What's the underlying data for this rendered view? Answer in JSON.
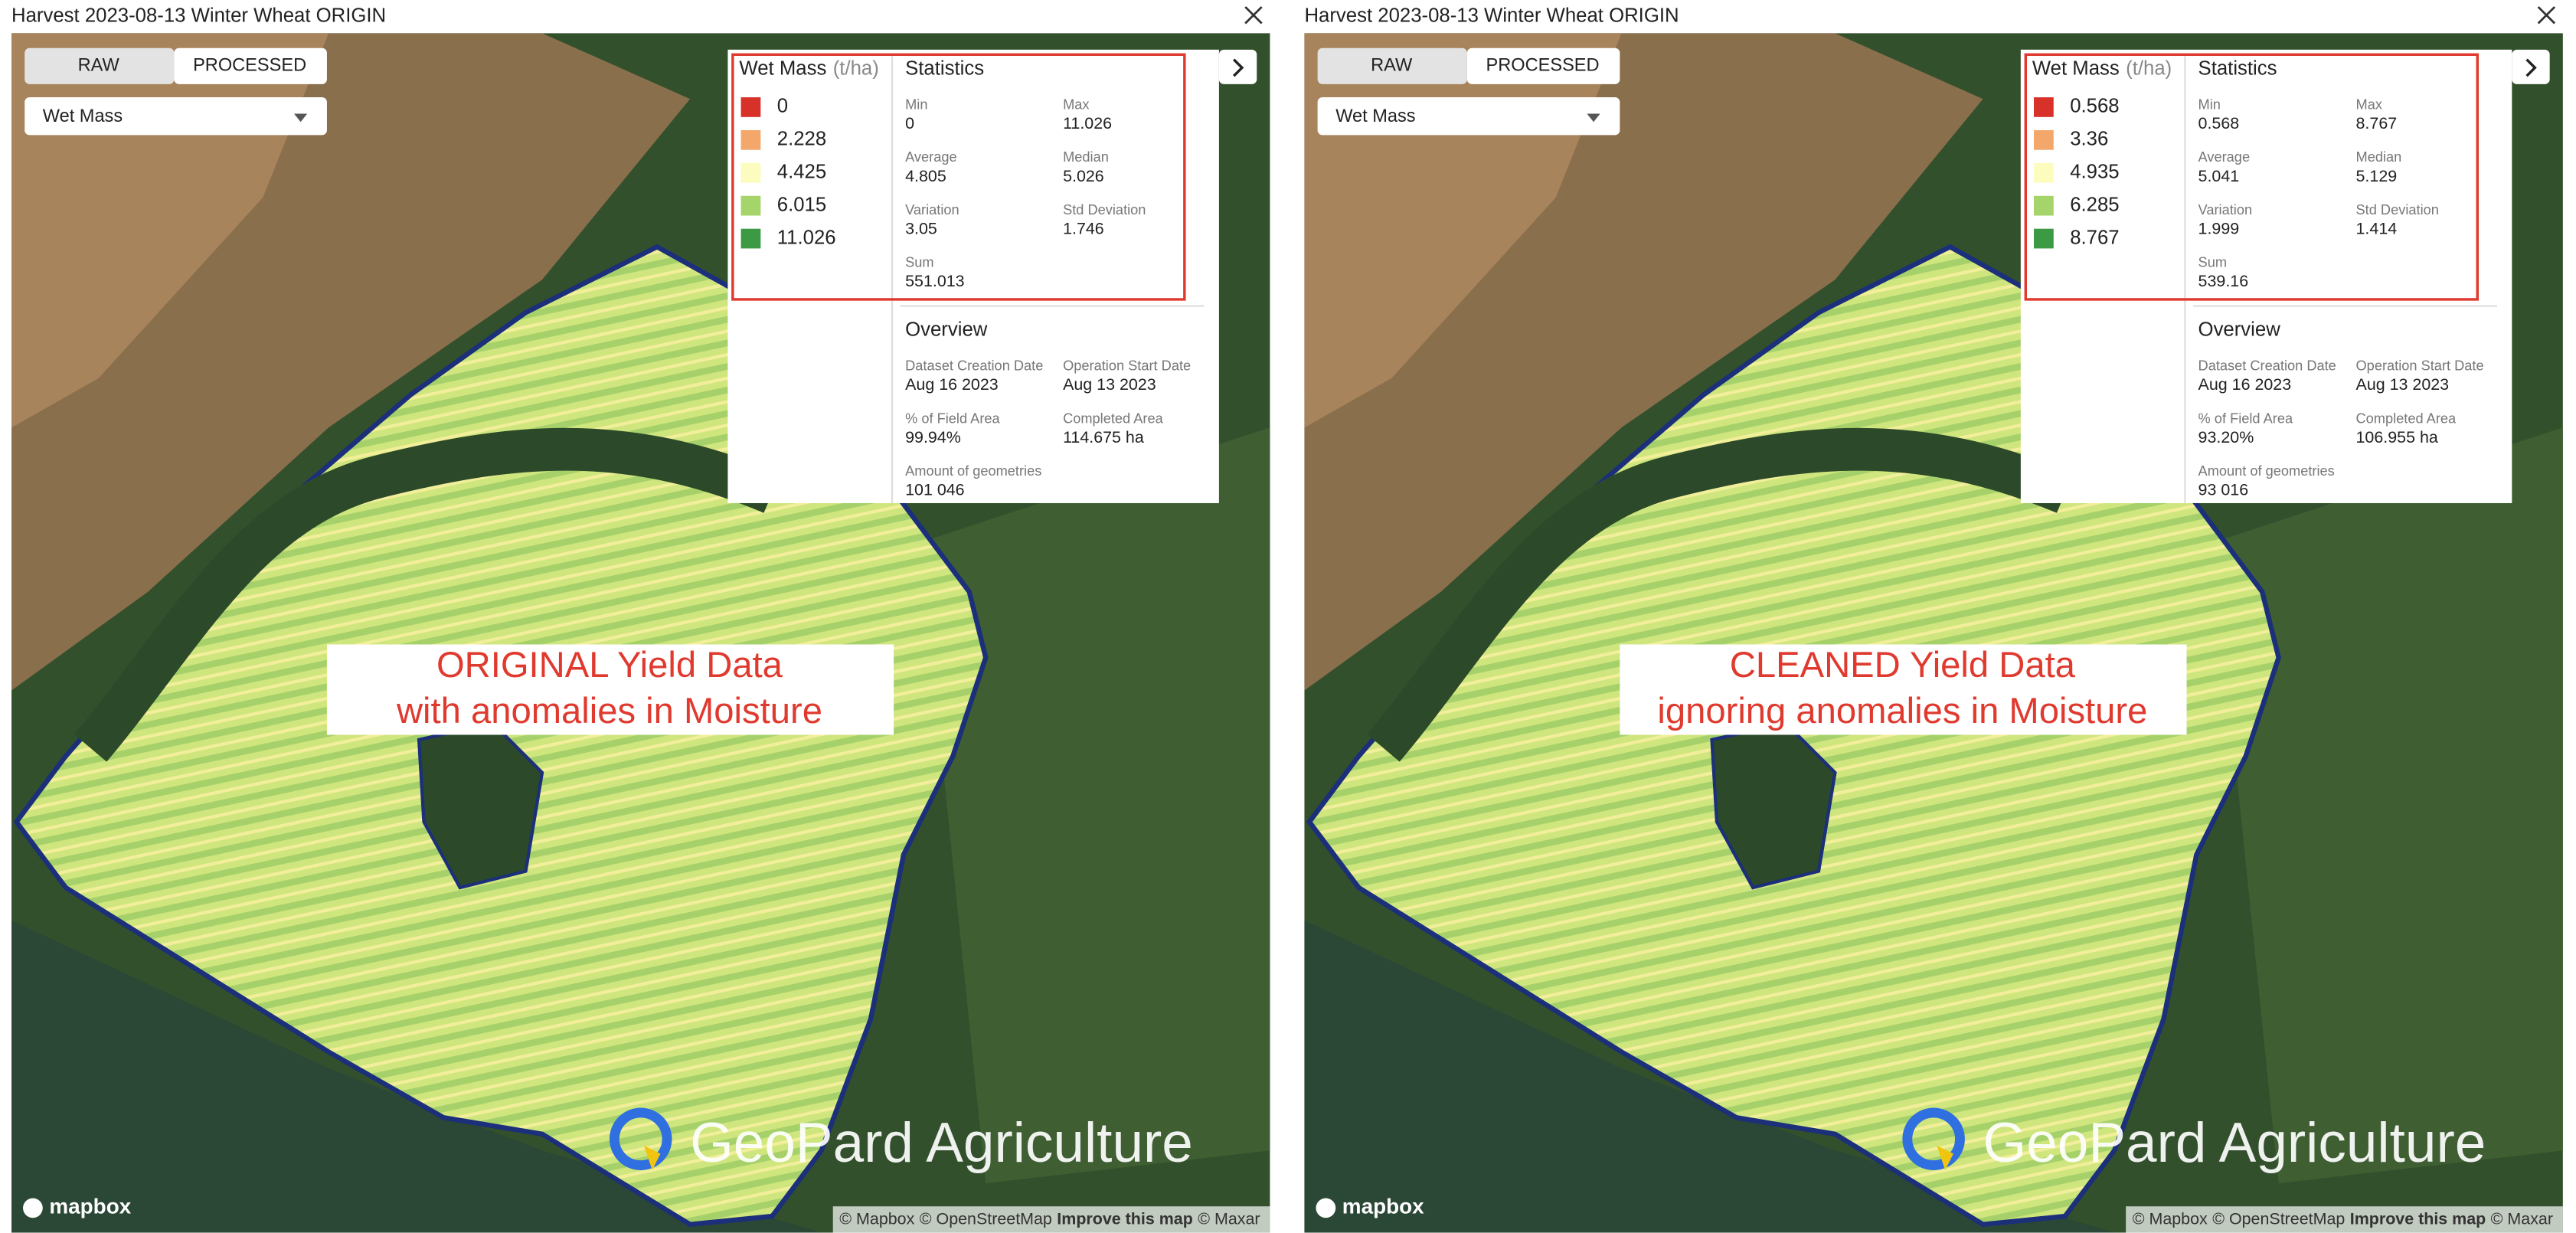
{
  "panels": [
    {
      "title": "Harvest 2023-08-13 Winter Wheat ORIGIN",
      "toggle": [
        "RAW",
        "PROCESSED"
      ],
      "dropdown": "Wet Mass",
      "legend": {
        "title": "Wet Mass",
        "unit": "(t/ha)",
        "items": [
          "0",
          "2.228",
          "4.425",
          "6.015",
          "11.026"
        ],
        "colors": [
          "#d7312a",
          "#f4a76b",
          "#fdfcbf",
          "#a5d46a",
          "#3b9a43"
        ]
      },
      "statistics": {
        "title": "Statistics",
        "items": [
          {
            "label": "Min",
            "value": "0"
          },
          {
            "label": "Max",
            "value": "11.026"
          },
          {
            "label": "Average",
            "value": "4.805"
          },
          {
            "label": "Median",
            "value": "5.026"
          },
          {
            "label": "Variation",
            "value": "3.05"
          },
          {
            "label": "Std Deviation",
            "value": "1.746"
          },
          {
            "label": "Sum",
            "value": "551.013"
          }
        ]
      },
      "overview": {
        "title": "Overview",
        "items": [
          {
            "label": "Dataset Creation Date",
            "value": "Aug 16 2023"
          },
          {
            "label": "Operation Start Date",
            "value": "Aug 13 2023"
          },
          {
            "label": "% of Field Area",
            "value": "99.94%"
          },
          {
            "label": "Completed Area",
            "value": "114.675 ha"
          },
          {
            "label": "Amount of geometries",
            "value": "101 046"
          }
        ]
      },
      "overlay": [
        "ORIGINAL Yield Data",
        "with anomalies in Moisture"
      ],
      "watermark": "GeoPard Agriculture",
      "mapbox": "mapbox",
      "attribution": [
        "© Mapbox",
        "© OpenStreetMap",
        "Improve this map",
        "© Maxar"
      ]
    },
    {
      "title": "Harvest 2023-08-13 Winter Wheat ORIGIN",
      "toggle": [
        "RAW",
        "PROCESSED"
      ],
      "dropdown": "Wet Mass",
      "legend": {
        "title": "Wet Mass",
        "unit": "(t/ha)",
        "items": [
          "0.568",
          "3.36",
          "4.935",
          "6.285",
          "8.767"
        ],
        "colors": [
          "#d7312a",
          "#f4a76b",
          "#fdfcbf",
          "#a5d46a",
          "#3b9a43"
        ]
      },
      "statistics": {
        "title": "Statistics",
        "items": [
          {
            "label": "Min",
            "value": "0.568"
          },
          {
            "label": "Max",
            "value": "8.767"
          },
          {
            "label": "Average",
            "value": "5.041"
          },
          {
            "label": "Median",
            "value": "5.129"
          },
          {
            "label": "Variation",
            "value": "1.999"
          },
          {
            "label": "Std Deviation",
            "value": "1.414"
          },
          {
            "label": "Sum",
            "value": "539.16"
          }
        ]
      },
      "overview": {
        "title": "Overview",
        "items": [
          {
            "label": "Dataset Creation Date",
            "value": "Aug 16 2023"
          },
          {
            "label": "Operation Start Date",
            "value": "Aug 13 2023"
          },
          {
            "label": "% of Field Area",
            "value": "93.20%"
          },
          {
            "label": "Completed Area",
            "value": "106.955 ha"
          },
          {
            "label": "Amount of geometries",
            "value": "93 016"
          }
        ]
      },
      "overlay": [
        "CLEANED Yield Data",
        "ignoring anomalies in Moisture"
      ],
      "watermark": "GeoPard Agriculture",
      "mapbox": "mapbox",
      "attribution": [
        "© Mapbox",
        "© OpenStreetMap",
        "Improve this map",
        "© Maxar"
      ]
    }
  ]
}
